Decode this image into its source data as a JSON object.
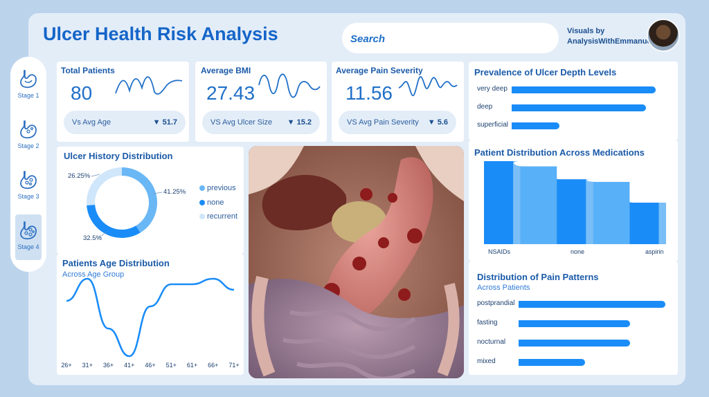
{
  "header": {
    "title": "Ulcer Health Risk Analysis",
    "search_placeholder": "Search",
    "credit_line1": "Visuals by",
    "credit_line2": "AnalysisWithEmmanuel"
  },
  "sidebar": {
    "items": [
      {
        "label": "Stage 1",
        "active": false
      },
      {
        "label": "Stage 2",
        "active": false
      },
      {
        "label": "Stage 3",
        "active": false
      },
      {
        "label": "Stage 4",
        "active": true
      }
    ]
  },
  "kpis": [
    {
      "title": "Total Patients",
      "value": "80",
      "compare_label": "Vs Avg Age",
      "delta": "▼ 51.7"
    },
    {
      "title": "Average BMI",
      "value": "27.43",
      "compare_label": "VS Avg Ulcer Size",
      "delta": "▼ 15.2"
    },
    {
      "title": "Average Pain Severity",
      "value": "11.56",
      "compare_label": "VS Avg Pain Severity",
      "delta": "▼ 5.6"
    }
  ],
  "colors": {
    "accent": "#1a8cf7",
    "dark_blue": "#1565c8",
    "light_blue": "#6ab7f5",
    "pale_blue": "#cfe6fb",
    "background": "#bcd3ec",
    "panel": "#e3edf8"
  },
  "chart_data": [
    {
      "type": "bar",
      "orientation": "horizontal",
      "title": "Prevalence of Ulcer Depth Levels",
      "categories": [
        "very deep",
        "deep",
        "superficial"
      ],
      "values": [
        30,
        28,
        10
      ]
    },
    {
      "type": "pie",
      "variant": "donut",
      "title": "Ulcer History Distribution",
      "categories": [
        "previous",
        "none",
        "recurrent"
      ],
      "values": [
        41.25,
        32.5,
        26.25
      ],
      "labels": [
        "41.25%",
        "32.5%",
        "26.25%"
      ],
      "colors": [
        "#6ab7f5",
        "#1a8cf7",
        "#cfe6fb"
      ],
      "legend": "right"
    },
    {
      "type": "area",
      "title": "Patient Distribution Across Medications",
      "categories": [
        "NSAIDs",
        "",
        "none",
        "",
        "aspirin"
      ],
      "values": [
        32,
        30,
        25,
        24,
        16
      ],
      "shown_x_labels": [
        "NSAIDs",
        "none",
        "aspirin"
      ]
    },
    {
      "type": "line",
      "title": "Patients Age Distribution",
      "subtitle": "Across Age Group",
      "categories": [
        "26+",
        "31+",
        "36+",
        "41+",
        "46+",
        "51+",
        "61+",
        "66+",
        "71+"
      ],
      "values": [
        10,
        14,
        5,
        0,
        9,
        13,
        13,
        14,
        12
      ]
    },
    {
      "type": "bar",
      "orientation": "horizontal",
      "title": "Distribution of Pain Patterns",
      "subtitle": "Across Patients",
      "categories": [
        "postprandial",
        "fasting",
        "nocturnal",
        "mixed"
      ],
      "values": [
        33,
        25,
        25,
        15
      ]
    }
  ]
}
